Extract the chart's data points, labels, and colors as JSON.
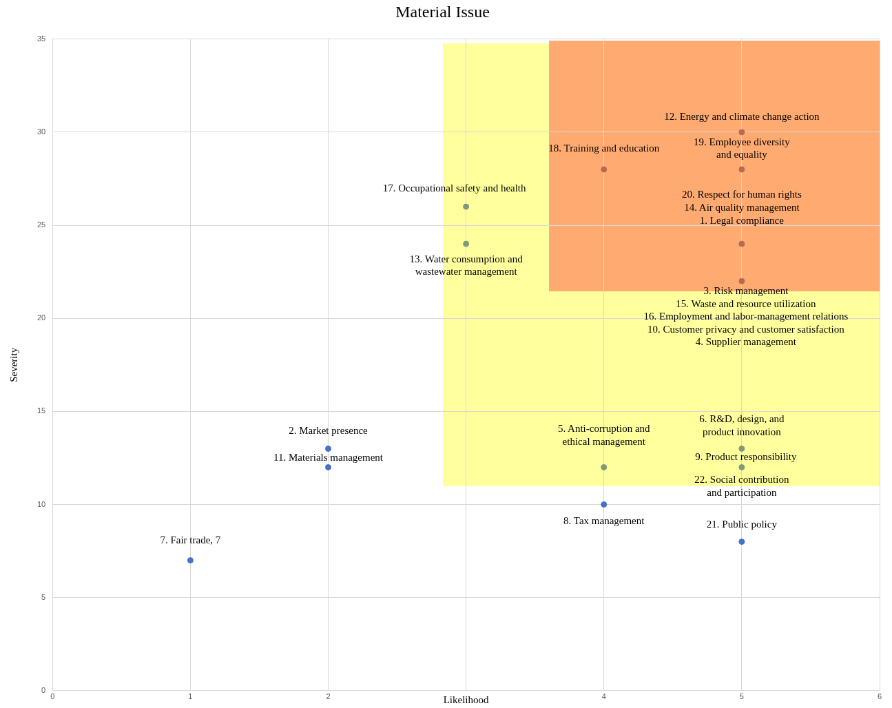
{
  "chart_data": {
    "type": "scatter",
    "title": "Material Issue",
    "xlabel": "Likelihood",
    "ylabel": "Severity",
    "x": [
      1,
      2,
      2,
      3,
      3,
      4,
      4,
      4,
      5,
      5,
      5,
      5,
      5,
      5,
      5
    ],
    "values": [
      7,
      13,
      12,
      26,
      24,
      28,
      12,
      10,
      30,
      28,
      24,
      22,
      13,
      12,
      8
    ],
    "colors": [
      "#4472c4",
      "#4472c4",
      "#4472c4",
      "#7f9a7a",
      "#7f9a7a",
      "#b56b55",
      "#7f9a7a",
      "#4472c4",
      "#b56b55",
      "#b56b55",
      "#b56b55",
      "#b56b55",
      "#7f9a7a",
      "#7f9a7a",
      "#4472c4"
    ],
    "xlim": [
      0,
      6
    ],
    "xticks": [
      0,
      1,
      2,
      {
        "value": 3,
        "label": null
      },
      4,
      5,
      6
    ],
    "ylim": [
      0,
      35
    ],
    "yticks": [
      0,
      5,
      10,
      15,
      20,
      25,
      30,
      35
    ],
    "grid": true,
    "legend": false,
    "marker": "circle",
    "annotations": [
      {
        "text": "7. Fair trade, 7",
        "x": 1,
        "y": 7
      },
      {
        "text": "2. Market presence",
        "x": 2,
        "y": 13
      },
      {
        "text": "11. Materials management",
        "x": 2,
        "y": 12
      },
      {
        "text": "17. Occupational safety and health",
        "x": 3,
        "y": 26
      },
      {
        "text": "13. Water consumption and\nwastewater management",
        "x": 3,
        "y": 24
      },
      {
        "text": "18. Training and education",
        "x": 4,
        "y": 28
      },
      {
        "text": "12. Energy and climate change action",
        "x": 5,
        "y": 30
      },
      {
        "text": "19. Employee diversity\nand equality",
        "x": 5,
        "y": 28
      },
      {
        "text": "20. Respect for human rights\n14. Air quality management\n1. Legal compliance",
        "x": 5,
        "y": 24
      },
      {
        "text": "3. Risk management\n15. Waste and resource utilization\n16. Employment and labor-management relations\n10. Customer privacy and customer satisfaction\n4. Supplier management",
        "x": 5,
        "y": 22
      },
      {
        "text": "5. Anti-corruption and\nethical management",
        "x": 4,
        "y": 12
      },
      {
        "text": "8. Tax management",
        "x": 4,
        "y": 10
      },
      {
        "text": "6. R&D, design, and\nproduct innovation",
        "x": 5,
        "y": 13
      },
      {
        "text": "9. Product responsibility",
        "x": 5,
        "y": 12
      },
      {
        "text": "22. Social contribution\nand participation",
        "x": 5,
        "y": 12
      },
      {
        "text": "21. Public policy",
        "x": 5,
        "y": 8
      }
    ]
  }
}
